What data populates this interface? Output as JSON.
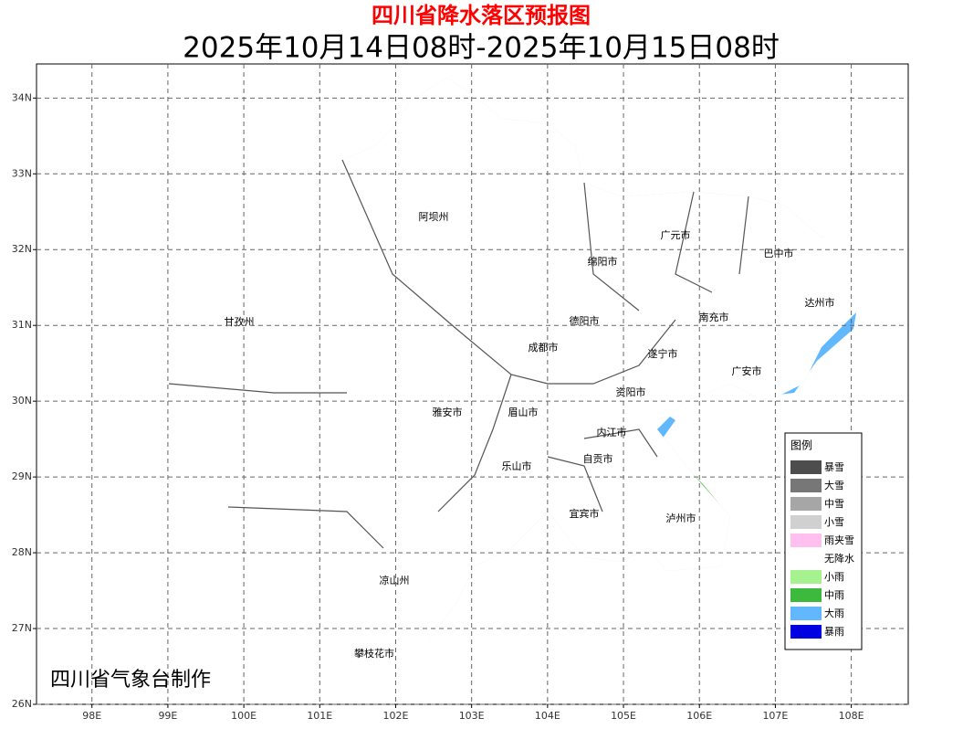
{
  "title": "四川省降水落区预报图",
  "subtitle": "2025年10月14日08时-2025年10月15日08时",
  "credit": "四川省气象台制作",
  "map": {
    "xlim": [
      97.27,
      108.75
    ],
    "ylim": [
      26,
      34.45
    ],
    "xticks": [
      {
        "value": 98,
        "label": "98E"
      },
      {
        "value": 99,
        "label": "99E"
      },
      {
        "value": 100,
        "label": "100E"
      },
      {
        "value": 101,
        "label": "101E"
      },
      {
        "value": 102,
        "label": "102E"
      },
      {
        "value": 103,
        "label": "103E"
      },
      {
        "value": 104,
        "label": "104E"
      },
      {
        "value": 105,
        "label": "105E"
      },
      {
        "value": 106,
        "label": "106E"
      },
      {
        "value": 107,
        "label": "107E"
      },
      {
        "value": 108,
        "label": "108E"
      }
    ],
    "yticks": [
      {
        "value": 26,
        "label": "26N"
      },
      {
        "value": 27,
        "label": "27N"
      },
      {
        "value": 28,
        "label": "28N"
      },
      {
        "value": 29,
        "label": "29N"
      },
      {
        "value": 30,
        "label": "30N"
      },
      {
        "value": 31,
        "label": "31N"
      },
      {
        "value": 32,
        "label": "32N"
      },
      {
        "value": 33,
        "label": "33N"
      },
      {
        "value": 34,
        "label": "34N"
      }
    ],
    "grid": true,
    "regions": [
      "阿坝州",
      "广元市",
      "巴中市",
      "绵阳市",
      "达州市",
      "甘孜州",
      "德阳市",
      "南充市",
      "成都市",
      "遂宁市",
      "广安市",
      "资阳市",
      "雅安市",
      "眉山市",
      "内江市",
      "自贡市",
      "乐山市",
      "宜宾市",
      "泸州市",
      "凉山州",
      "攀枝花市"
    ]
  },
  "legend": {
    "title": "图例",
    "items": [
      {
        "label": "暴雪",
        "color": "#4d4d4d"
      },
      {
        "label": "大雪",
        "color": "#777777"
      },
      {
        "label": "中雪",
        "color": "#a6a6a6"
      },
      {
        "label": "小雪",
        "color": "#d0d0d0"
      },
      {
        "label": "雨夹雪",
        "color": "#ffc0f0"
      },
      {
        "label": "无降水",
        "color": "#ffffff"
      },
      {
        "label": "小雨",
        "color": "#a6f28f"
      },
      {
        "label": "中雨",
        "color": "#3dba3d"
      },
      {
        "label": "大雨",
        "color": "#61b8ff"
      },
      {
        "label": "暴雨",
        "color": "#0000e1"
      }
    ]
  }
}
